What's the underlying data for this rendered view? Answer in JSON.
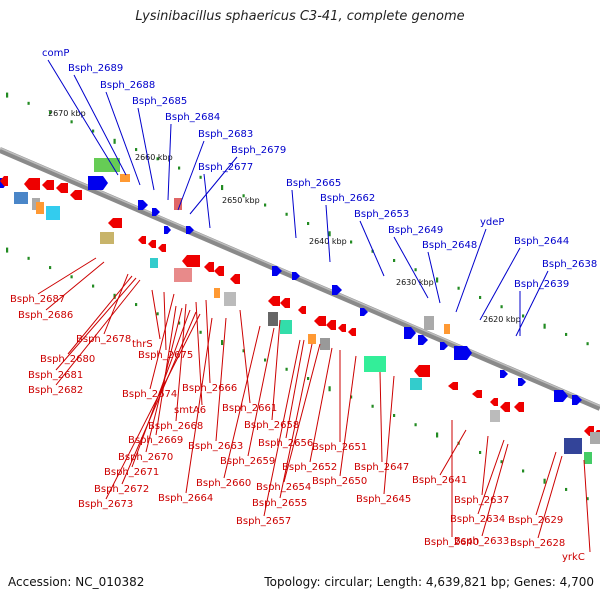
{
  "title": "Lysinibacillus sphaericus C3-41, complete genome",
  "accession": "Accession: NC_010382",
  "topology": "Topology: circular; Length: 4,639,821 bp; Genes: 4,700",
  "colors": {
    "forward_label": "#0000cc",
    "reverse_label": "#cc0000",
    "forward_gene": "#0000ee",
    "reverse_gene": "#ee0000",
    "backbone": "#888888",
    "tick": "#228b22"
  },
  "scale_labels": [
    "2670 kbp",
    "2660 kbp",
    "2650 kbp",
    "2640 kbp",
    "2630 kbp",
    "2620 kbp"
  ],
  "forward_genes": [
    "comP",
    "Bsph_2689",
    "Bsph_2688",
    "Bsph_2685",
    "Bsph_2684",
    "Bsph_2683",
    "Bsph_2679",
    "Bsph_2677",
    "Bsph_2665",
    "Bsph_2662",
    "Bsph_2653",
    "Bsph_2649",
    "Bsph_2648",
    "ydeP",
    "Bsph_2644",
    "Bsph_2638",
    "Bsph_2639"
  ],
  "reverse_genes": [
    "Bsph_2687",
    "Bsph_2686",
    "Bsph_2678",
    "Bsph_2680",
    "Bsph_2681",
    "Bsph_2682",
    "thrS",
    "Bsph_2675",
    "Bsph_2674",
    "Bsph_2666",
    "smtA6",
    "Bsph_2668",
    "Bsph_2669",
    "Bsph_2670",
    "Bsph_2671",
    "Bsph_2672",
    "Bsph_2673",
    "Bsph_2664",
    "Bsph_2663",
    "Bsph_2661",
    "Bsph_2660",
    "Bsph_2659",
    "Bsph_2658",
    "Bsph_2657",
    "Bsph_2656",
    "Bsph_2655",
    "Bsph_2654",
    "Bsph_2652",
    "Bsph_2651",
    "Bsph_2650",
    "Bsph_2647",
    "Bsph_2645",
    "Bsph_2641",
    "Bsph_2640",
    "Bsph_2637",
    "Bsph_2634",
    "Bsph_2633",
    "Bsph_2629",
    "Bsph_2628",
    "yrkC"
  ]
}
